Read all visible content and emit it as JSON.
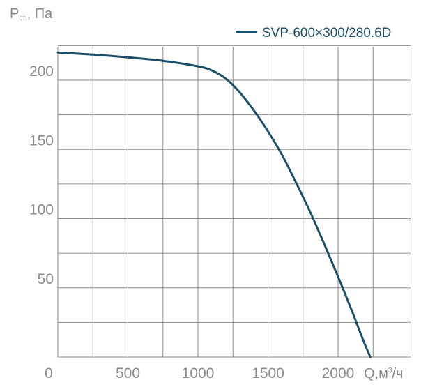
{
  "chart_data": {
    "type": "line",
    "ylabel_main": "P",
    "ylabel_sub": "ст.",
    "ylabel_unit": ", Па",
    "xlabel_main": "Q,м",
    "xlabel_sup": "3",
    "xlabel_unit": "/ч",
    "xlim": [
      0,
      2300
    ],
    "ylim": [
      0,
      225
    ],
    "x_ticks": [
      0,
      500,
      1000,
      1500,
      2000
    ],
    "x_tick_labels": [
      "0",
      "500",
      "1000",
      "1500",
      "2000"
    ],
    "y_ticks": [
      50,
      100,
      150,
      200
    ],
    "y_tick_labels": [
      "50",
      "100",
      "150",
      "200"
    ],
    "grid": true,
    "legend_position": "top-right",
    "series": [
      {
        "name": "SVP-600×300/280.6D",
        "color": "#1b4f6a",
        "points": [
          [
            0,
            220
          ],
          [
            250,
            218.5
          ],
          [
            500,
            216.5
          ],
          [
            750,
            214
          ],
          [
            1000,
            210
          ],
          [
            1100,
            207
          ],
          [
            1200,
            201
          ],
          [
            1300,
            191
          ],
          [
            1400,
            178
          ],
          [
            1500,
            163
          ],
          [
            1600,
            146
          ],
          [
            1700,
            126
          ],
          [
            1800,
            105
          ],
          [
            1900,
            82
          ],
          [
            2000,
            58
          ],
          [
            2100,
            33
          ],
          [
            2180,
            12
          ],
          [
            2230,
            0
          ]
        ]
      }
    ]
  }
}
